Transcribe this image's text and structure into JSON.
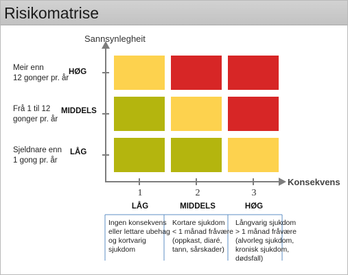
{
  "title": "Risikomatrise",
  "y_axis_title": "Sannsynlegheit",
  "x_axis_title": "Konsekvens",
  "colors": {
    "yellow": "#fdd24e",
    "red": "#d72626",
    "olive": "#b4b50e",
    "axis": "#7d7d7d",
    "divider": "#5e8fc4"
  },
  "rows": [
    {
      "level": "HØG",
      "desc": [
        "Meir enn",
        "12 gonger pr. år"
      ]
    },
    {
      "level": "MIDDELS",
      "desc": [
        "Frå 1 til 12",
        "gonger pr. år"
      ]
    },
    {
      "level": "LÅG",
      "desc": [
        "Sjeldnare enn",
        "1 gong pr. år"
      ]
    }
  ],
  "columns": [
    {
      "number": "1",
      "level": "LÅG",
      "desc": [
        "Ingen konsekvens",
        "eller lettare ubehag",
        "og kortvarig",
        "sjukdom"
      ]
    },
    {
      "number": "2",
      "level": "MIDDELS",
      "desc": [
        "Kortare sjukdom",
        "< 1 månad fråvære",
        "(oppkast, diaré,",
        "tann, sårskader)"
      ]
    },
    {
      "number": "3",
      "level": "HØG",
      "desc": [
        "Långvarig sjukdom",
        "> 1 månad fråvære",
        "(alvorleg sjukdom,",
        "kronisk sjukdom,",
        "dødsfall)"
      ]
    }
  ],
  "cells": [
    [
      "yellow",
      "red",
      "red"
    ],
    [
      "olive",
      "yellow",
      "red"
    ],
    [
      "olive",
      "olive",
      "yellow"
    ]
  ]
}
